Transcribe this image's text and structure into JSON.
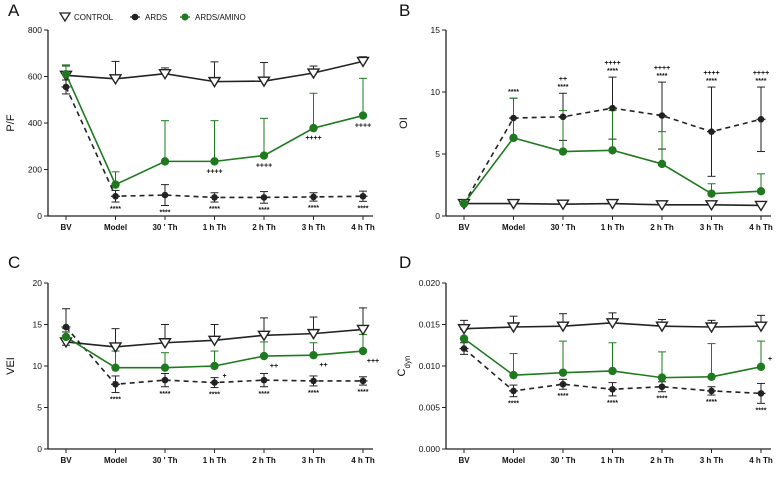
{
  "colors": {
    "control": "#222222",
    "ards": "#222222",
    "amino": "#1f7a1f",
    "axis": "#222222"
  },
  "legend": {
    "control": "CONTROL",
    "ards": "ARDS",
    "amino": "ARDS/AMINO"
  },
  "chart_data": [
    {
      "panel": "A",
      "type": "line",
      "ylabel": "P/F",
      "ylabel_sub": "",
      "categories": [
        "BV",
        "Model",
        "30 ' Th",
        "1 h Th",
        "2 h Th",
        "3 h Th",
        "4 h Th"
      ],
      "ylim": [
        0,
        800
      ],
      "yticks": [
        "0",
        "200",
        "400",
        "600",
        "800"
      ],
      "ytick_values": [
        0,
        200,
        400,
        600,
        800
      ],
      "series": [
        {
          "name": "CONTROL",
          "values": [
            605,
            590,
            612,
            578,
            580,
            615,
            665
          ],
          "err": [
            40,
            75,
            25,
            85,
            80,
            30,
            20
          ]
        },
        {
          "name": "ARDS",
          "values": [
            555,
            85,
            90,
            80,
            80,
            82,
            85
          ],
          "err": [
            30,
            25,
            45,
            20,
            25,
            18,
            22
          ]
        },
        {
          "name": "ARDS/AMINO",
          "values": [
            610,
            135,
            235,
            235,
            260,
            378,
            432
          ],
          "err": [
            40,
            55,
            175,
            175,
            160,
            150,
            160
          ]
        }
      ],
      "annotations_ards": [
        "",
        "****",
        "****",
        "****",
        "****",
        "****",
        "****"
      ],
      "annotations_amino": [
        "",
        "",
        "",
        "++++",
        "++++",
        "++++",
        "++++"
      ]
    },
    {
      "panel": "B",
      "type": "line",
      "ylabel": "OI",
      "ylabel_sub": "",
      "categories": [
        "BV",
        "Model",
        "30 ' Th",
        "1 h Th",
        "2 h Th",
        "3 h Th",
        "4 h Th"
      ],
      "ylim": [
        0,
        15
      ],
      "yticks": [
        "0",
        "5",
        "10",
        "15"
      ],
      "ytick_values": [
        0,
        5,
        10,
        15
      ],
      "series": [
        {
          "name": "CONTROL",
          "values": [
            1.0,
            1.0,
            0.95,
            1.0,
            0.9,
            0.9,
            0.85
          ],
          "err": [
            0.05,
            0.05,
            0.05,
            0.05,
            0.05,
            0.05,
            0.05
          ]
        },
        {
          "name": "ARDS",
          "values": [
            1.0,
            7.9,
            8.0,
            8.7,
            8.1,
            6.8,
            7.8
          ],
          "err": [
            0.1,
            1.6,
            1.9,
            2.5,
            2.7,
            3.6,
            2.6
          ]
        },
        {
          "name": "ARDS/AMINO",
          "values": [
            1.0,
            6.3,
            5.2,
            5.3,
            4.2,
            1.8,
            2.0
          ],
          "err": [
            0.1,
            3.2,
            3.3,
            3.2,
            2.6,
            0.8,
            1.4
          ]
        }
      ],
      "annotations_ards": [
        "",
        "****",
        "****",
        "****",
        "****",
        "****",
        "****"
      ],
      "annotations_amino": [
        "",
        "",
        "++",
        "++++",
        "++++",
        "++++",
        "++++"
      ]
    },
    {
      "panel": "C",
      "type": "line",
      "ylabel": "VEI",
      "ylabel_sub": "",
      "categories": [
        "BV",
        "Model",
        "30 ' Th",
        "1 h Th",
        "2 h Th",
        "3 h Th",
        "4 h Th"
      ],
      "ylim": [
        0,
        20
      ],
      "yticks": [
        "0",
        "5",
        "10",
        "15",
        "20"
      ],
      "ytick_values": [
        0,
        5,
        10,
        15,
        20
      ],
      "series": [
        {
          "name": "CONTROL",
          "values": [
            12.9,
            12.3,
            12.8,
            13.1,
            13.7,
            13.9,
            14.4
          ],
          "err": [
            1.2,
            2.2,
            2.2,
            1.9,
            2.1,
            2.0,
            2.6
          ]
        },
        {
          "name": "ARDS",
          "values": [
            14.7,
            7.8,
            8.3,
            8.0,
            8.3,
            8.2,
            8.2
          ],
          "err": [
            2.2,
            1.0,
            0.8,
            0.6,
            0.8,
            0.6,
            0.5
          ]
        },
        {
          "name": "ARDS/AMINO",
          "values": [
            13.5,
            9.8,
            9.8,
            10.0,
            11.2,
            11.3,
            11.8
          ],
          "err": [
            1.0,
            2.0,
            1.8,
            1.8,
            1.7,
            1.5,
            2.0
          ]
        }
      ],
      "annotations_ards": [
        "",
        "****",
        "****",
        "****",
        "****",
        "****",
        "****"
      ],
      "annotations_amino": [
        "",
        "",
        "",
        "+",
        "++",
        "++",
        "+++"
      ]
    },
    {
      "panel": "D",
      "type": "line",
      "ylabel": "C",
      "ylabel_sub": "dyn",
      "categories": [
        "BV",
        "Model",
        "30 ' Th",
        "1 h Th",
        "2 h Th",
        "3 h Th",
        "4 h Th"
      ],
      "ylim": [
        0,
        0.02
      ],
      "yticks": [
        "0.000",
        "0.005",
        "0.010",
        "0.015",
        "0.020"
      ],
      "ytick_values": [
        0,
        0.005,
        0.01,
        0.015,
        0.02
      ],
      "series": [
        {
          "name": "CONTROL",
          "values": [
            0.0145,
            0.0147,
            0.0148,
            0.0152,
            0.0148,
            0.0147,
            0.0148
          ],
          "err": [
            0.001,
            0.0013,
            0.0015,
            0.0012,
            0.0008,
            0.0008,
            0.0013
          ]
        },
        {
          "name": "ARDS",
          "values": [
            0.0121,
            0.007,
            0.0078,
            0.0072,
            0.0075,
            0.007,
            0.0067
          ],
          "err": [
            0.0007,
            0.0007,
            0.0006,
            0.0008,
            0.0006,
            0.0005,
            0.0012
          ]
        },
        {
          "name": "ARDS/AMINO",
          "values": [
            0.0133,
            0.0089,
            0.0092,
            0.0094,
            0.0086,
            0.0087,
            0.0099
          ],
          "err": [
            0.0011,
            0.0026,
            0.0038,
            0.0034,
            0.0031,
            0.004,
            0.0031
          ]
        }
      ],
      "annotations_ards": [
        "",
        "****",
        "****",
        "****",
        "****",
        "****",
        "****"
      ],
      "annotations_amino": [
        "",
        "",
        "",
        "",
        "",
        "",
        "+"
      ]
    }
  ]
}
